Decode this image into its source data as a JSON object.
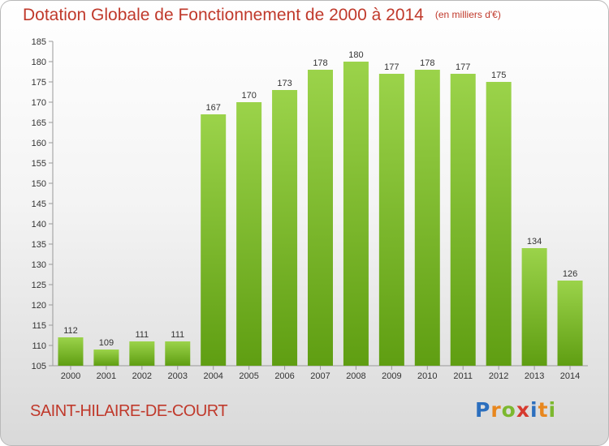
{
  "header": {
    "title": "Dotation Globale de Fonctionnement de 2000 à 2014",
    "unit": "(en milliers d'€)"
  },
  "footer": {
    "commune": "SAINT-HILAIRE-DE-COURT"
  },
  "logo": {
    "text": "Proxiti",
    "letters": [
      {
        "ch": "P",
        "color": "#2c6fbe"
      },
      {
        "ch": "r",
        "color": "#e8871e"
      },
      {
        "ch": "o",
        "color": "#7cb82f"
      },
      {
        "ch": "x",
        "color": "#d63a2f"
      },
      {
        "ch": "i",
        "color": "#2c6fbe"
      },
      {
        "ch": "t",
        "color": "#e8871e"
      },
      {
        "ch": "i",
        "color": "#7cb82f"
      }
    ]
  },
  "colors": {
    "title": "#c0392b",
    "bar_top": "#9bd34a",
    "bar_bottom": "#5f9e12",
    "axis": "#999999",
    "grid": "#cccccc",
    "text": "#333333"
  },
  "chart_data": {
    "type": "bar",
    "categories": [
      "2000",
      "2001",
      "2002",
      "2003",
      "2004",
      "2005",
      "2006",
      "2007",
      "2008",
      "2009",
      "2010",
      "2011",
      "2012",
      "2013",
      "2014"
    ],
    "values": [
      112,
      109,
      111,
      111,
      167,
      170,
      173,
      178,
      180,
      177,
      178,
      177,
      175,
      134,
      126
    ],
    "ylim": [
      105,
      185
    ],
    "yticks": [
      105,
      110,
      115,
      120,
      125,
      130,
      135,
      140,
      145,
      150,
      155,
      160,
      165,
      170,
      175,
      180,
      185
    ],
    "grid": false,
    "data_labels": true
  }
}
